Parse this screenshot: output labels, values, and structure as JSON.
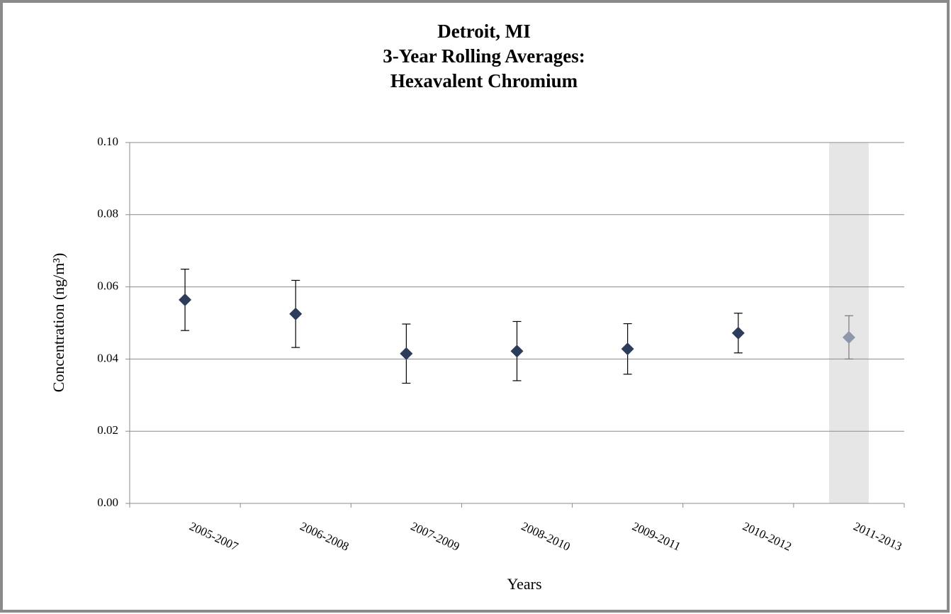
{
  "chart_data": {
    "type": "errorbar",
    "title": [
      "Detroit, MI",
      "3-Year Rolling Averages:",
      "Hexavalent Chromium"
    ],
    "x_label": "Years",
    "y_label": "Concentration (ng/m³)",
    "categories": [
      "2005-2007",
      "2006-2008",
      "2007-2009",
      "2008-2010",
      "2009-2011",
      "2010-2012",
      "2011-2013"
    ],
    "values": [
      0.0564,
      0.0525,
      0.0415,
      0.0422,
      0.0428,
      0.0472,
      0.046
    ],
    "errors": [
      0.0085,
      0.0093,
      0.0082,
      0.0082,
      0.007,
      0.0055,
      0.006
    ],
    "colors": [
      "#2e3c5c",
      "#2e3c5c",
      "#2e3c5c",
      "#2e3c5c",
      "#2e3c5c",
      "#2e3c5c",
      "#8e98aa"
    ],
    "highlight_index": 6,
    "ylim": [
      0,
      0.1
    ],
    "yticks": [
      {
        "value": 0,
        "label": "0.00"
      },
      {
        "value": 0.02,
        "label": "0.02"
      },
      {
        "value": 0.04,
        "label": "0.04"
      },
      {
        "value": 0.06,
        "label": "0.06"
      },
      {
        "value": 0.08,
        "label": "0.08"
      },
      {
        "value": 0.1,
        "label": "0.10"
      }
    ],
    "grid": true
  }
}
